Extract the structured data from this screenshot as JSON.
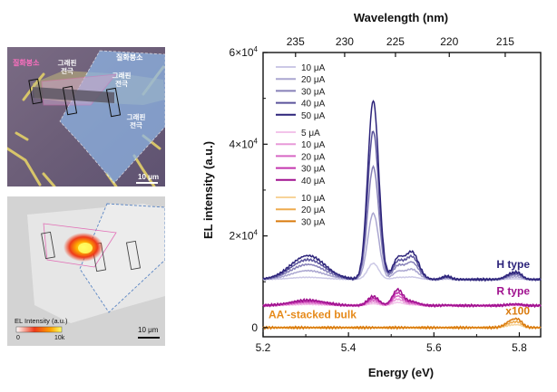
{
  "panel_optical": {
    "labels": {
      "hbn_left": "질화붕소",
      "hbn_right": "질화붕소",
      "graphene_a": "그래핀\n전극",
      "graphene_b": "그래핀\n전극",
      "graphene_c": "그래핀\n전극"
    },
    "scale_bar": "10 μm"
  },
  "panel_el_map": {
    "colorbar_title": "EL Intensity (a.u.)",
    "colorbar_min": "0",
    "colorbar_max": "10k",
    "scale_bar": "10 μm"
  },
  "chart_data": {
    "type": "line",
    "xlabel": "Energy (eV)",
    "ylabel": "EL intensity (a.u.)",
    "top_xlabel": "Wavelength (nm)",
    "xlim": [
      5.2,
      5.85
    ],
    "ylim": [
      -0.2,
      6.0
    ],
    "xticks": [
      "5.2",
      "5.4",
      "5.6",
      "5.8"
    ],
    "yticks": [
      "0",
      "2×10⁴",
      "4×10⁴",
      "6×10⁴"
    ],
    "top_ticks": [
      {
        "label": "235",
        "energy": 5.276
      },
      {
        "label": "230",
        "energy": 5.391
      },
      {
        "label": "225",
        "energy": 5.51
      },
      {
        "label": "220",
        "energy": 5.636
      },
      {
        "label": "215",
        "energy": 5.767
      }
    ],
    "groups": [
      {
        "name": "H type",
        "offset": 1.05,
        "params": {
          "bump": 0.52,
          "main": 3.9,
          "shoulder": 0.42,
          "side": 0.6,
          "tail": 0.14,
          "main_pos": 5.458,
          "side_pos": 5.548
        },
        "series": [
          {
            "label": "10 μA",
            "scale": 0.09,
            "color": "#ccc9e6"
          },
          {
            "label": "20 μA",
            "scale": 0.37,
            "color": "#aaa6d0"
          },
          {
            "label": "30 μA",
            "scale": 0.63,
            "color": "#8680b8"
          },
          {
            "label": "40 μA",
            "scale": 0.83,
            "color": "#5a539b"
          },
          {
            "label": "50 μA",
            "scale": 1.0,
            "color": "#2c237a"
          }
        ]
      },
      {
        "name": "R type",
        "offset": 0.48,
        "params": {
          "bump": 0.12,
          "main": 0.2,
          "shoulder": 0.34,
          "side": 0.09,
          "tail": 0.03,
          "main_pos": 5.458,
          "side_pos": 5.548
        },
        "series": [
          {
            "label": "5 μA",
            "scale": 0.2,
            "color": "#f3c4ea"
          },
          {
            "label": "10 μA",
            "scale": 0.4,
            "color": "#e89ad9"
          },
          {
            "label": "20 μA",
            "scale": 0.6,
            "color": "#d767c4"
          },
          {
            "label": "30 μA",
            "scale": 0.8,
            "color": "#c335ae"
          },
          {
            "label": "40 μA",
            "scale": 1.0,
            "color": "#a0118f"
          }
        ]
      },
      {
        "name": "AA'-stacked bulk",
        "multiplier": "x100",
        "offset": 0.0,
        "params": {
          "bump": 0.0,
          "main": 0.0,
          "shoulder": 0.0,
          "side": 0.0,
          "tail": 0.17,
          "main_pos": 5.458,
          "side_pos": 5.548
        },
        "series": [
          {
            "label": "10 μA",
            "scale": 0.33,
            "color": "#f7d399"
          },
          {
            "label": "20 μA",
            "scale": 0.66,
            "color": "#eeab4f"
          },
          {
            "label": "30 μA",
            "scale": 1.0,
            "color": "#d97a0c"
          }
        ]
      }
    ]
  }
}
